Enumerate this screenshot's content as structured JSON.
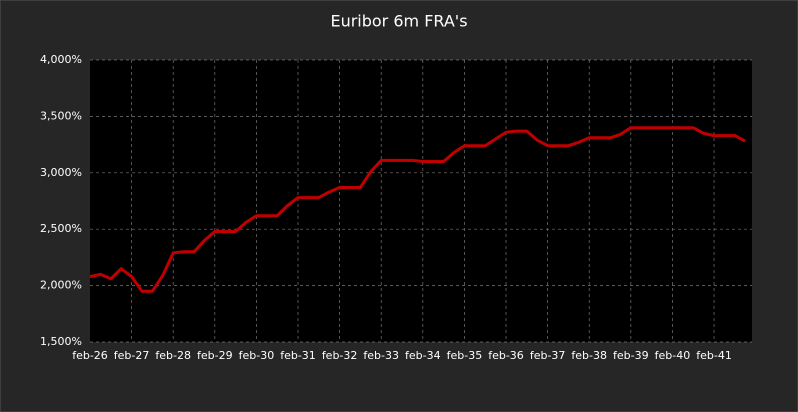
{
  "chart_data": {
    "type": "line",
    "title": "Euribor 6m FRA's",
    "categories": [
      "feb-26",
      null,
      null,
      null,
      "feb-27",
      null,
      null,
      null,
      "feb-28",
      null,
      null,
      null,
      "feb-29",
      null,
      null,
      null,
      "feb-30",
      null,
      null,
      null,
      "feb-31",
      null,
      null,
      null,
      "feb-32",
      null,
      null,
      null,
      "feb-33",
      null,
      null,
      null,
      "feb-34",
      null,
      null,
      null,
      "feb-35",
      null,
      null,
      null,
      "feb-36",
      null,
      null,
      null,
      "feb-37",
      null,
      null,
      null,
      "feb-38",
      null,
      null,
      null,
      "feb-39",
      null,
      null,
      null,
      "feb-40",
      null,
      null,
      null,
      "feb-41",
      null,
      null,
      null
    ],
    "values": [
      2.08,
      2.1,
      2.06,
      2.15,
      2.08,
      1.95,
      1.95,
      2.09,
      2.29,
      2.3,
      2.3,
      2.4,
      2.48,
      2.48,
      2.48,
      2.56,
      2.62,
      2.62,
      2.62,
      2.71,
      2.78,
      2.78,
      2.78,
      2.83,
      2.87,
      2.87,
      2.87,
      3.01,
      3.11,
      3.11,
      3.11,
      3.11,
      3.1,
      3.1,
      3.1,
      3.18,
      3.24,
      3.24,
      3.24,
      3.3,
      3.36,
      3.37,
      3.37,
      3.29,
      3.24,
      3.24,
      3.24,
      3.27,
      3.31,
      3.31,
      3.31,
      3.34,
      3.4,
      3.4,
      3.4,
      3.4,
      3.4,
      3.4,
      3.4,
      3.35,
      3.33,
      3.33,
      3.33,
      3.28
    ],
    "color": "#c00000",
    "ylim": [
      1.5,
      4.0
    ],
    "yticks": [
      {
        "value": 1.5,
        "label": "1,500%"
      },
      {
        "value": 2.0,
        "label": "2,000%"
      },
      {
        "value": 2.5,
        "label": "2,500%"
      },
      {
        "value": 3.0,
        "label": "3,000%"
      },
      {
        "value": 3.5,
        "label": "3,500%"
      },
      {
        "value": 4.0,
        "label": "4,000%"
      }
    ],
    "grid": true
  }
}
